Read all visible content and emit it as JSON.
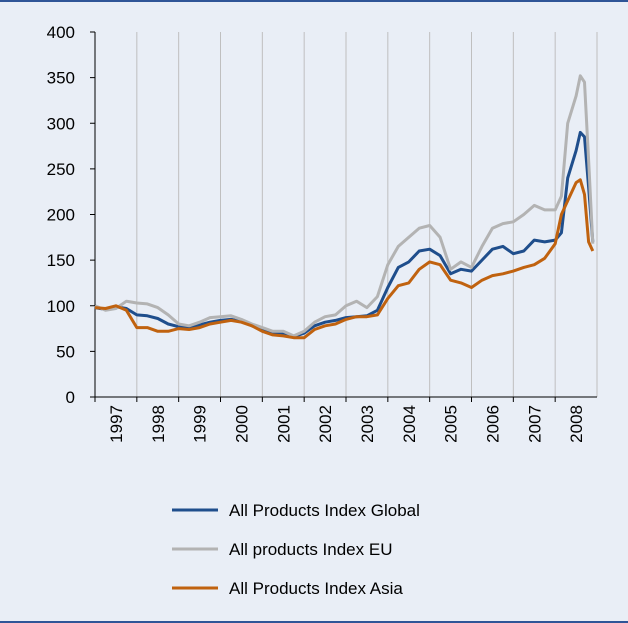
{
  "chart_data": {
    "type": "line",
    "categories": [
      "1997",
      "1998",
      "1999",
      "2000",
      "2001",
      "2002",
      "2003",
      "2004",
      "2005",
      "2006",
      "2007",
      "2008"
    ],
    "x": [
      1997,
      1997.25,
      1997.5,
      1997.75,
      1998,
      1998.25,
      1998.5,
      1998.75,
      1999,
      1999.25,
      1999.5,
      1999.75,
      2000,
      2000.25,
      2000.5,
      2000.75,
      2001,
      2001.25,
      2001.5,
      2001.75,
      2002,
      2002.25,
      2002.5,
      2002.75,
      2003,
      2003.25,
      2003.5,
      2003.75,
      2004,
      2004.25,
      2004.5,
      2004.75,
      2005,
      2005.25,
      2005.5,
      2005.75,
      2006,
      2006.25,
      2006.5,
      2006.75,
      2007,
      2007.25,
      2007.5,
      2007.75,
      2008,
      2008.15,
      2008.3,
      2008.5,
      2008.6,
      2008.7,
      2008.8,
      2008.9
    ],
    "xlim": [
      1997,
      2009
    ],
    "ylim": [
      0,
      400
    ],
    "yticks": [
      0,
      50,
      100,
      150,
      200,
      250,
      300,
      350,
      400
    ],
    "grid": true,
    "series": [
      {
        "name": "All Products Index Global",
        "color": "#1f4e8c",
        "values": [
          98,
          96,
          99,
          97,
          90,
          89,
          86,
          80,
          77,
          76,
          79,
          82,
          84,
          85,
          83,
          78,
          74,
          71,
          70,
          66,
          70,
          78,
          82,
          84,
          87,
          88,
          89,
          95,
          120,
          142,
          148,
          160,
          162,
          155,
          135,
          140,
          138,
          150,
          162,
          165,
          157,
          160,
          172,
          170,
          172,
          180,
          240,
          270,
          290,
          285,
          230,
          170
        ]
      },
      {
        "name": "All products Index EU",
        "color": "#b3b3b3",
        "values": [
          100,
          95,
          97,
          105,
          103,
          102,
          98,
          90,
          80,
          78,
          82,
          87,
          88,
          89,
          85,
          80,
          76,
          72,
          72,
          67,
          72,
          82,
          88,
          90,
          100,
          105,
          98,
          110,
          145,
          165,
          175,
          185,
          188,
          175,
          140,
          148,
          142,
          165,
          185,
          190,
          192,
          200,
          210,
          205,
          205,
          220,
          300,
          330,
          352,
          345,
          260,
          168
        ]
      },
      {
        "name": "All Products Index Asia",
        "color": "#c0620f",
        "values": [
          98,
          97,
          100,
          95,
          76,
          76,
          72,
          72,
          75,
          74,
          76,
          80,
          82,
          84,
          82,
          78,
          72,
          68,
          67,
          65,
          65,
          74,
          78,
          80,
          85,
          88,
          88,
          90,
          108,
          122,
          125,
          140,
          148,
          145,
          128,
          125,
          120,
          128,
          133,
          135,
          138,
          142,
          145,
          152,
          168,
          200,
          215,
          235,
          238,
          222,
          170,
          160
        ]
      }
    ]
  }
}
